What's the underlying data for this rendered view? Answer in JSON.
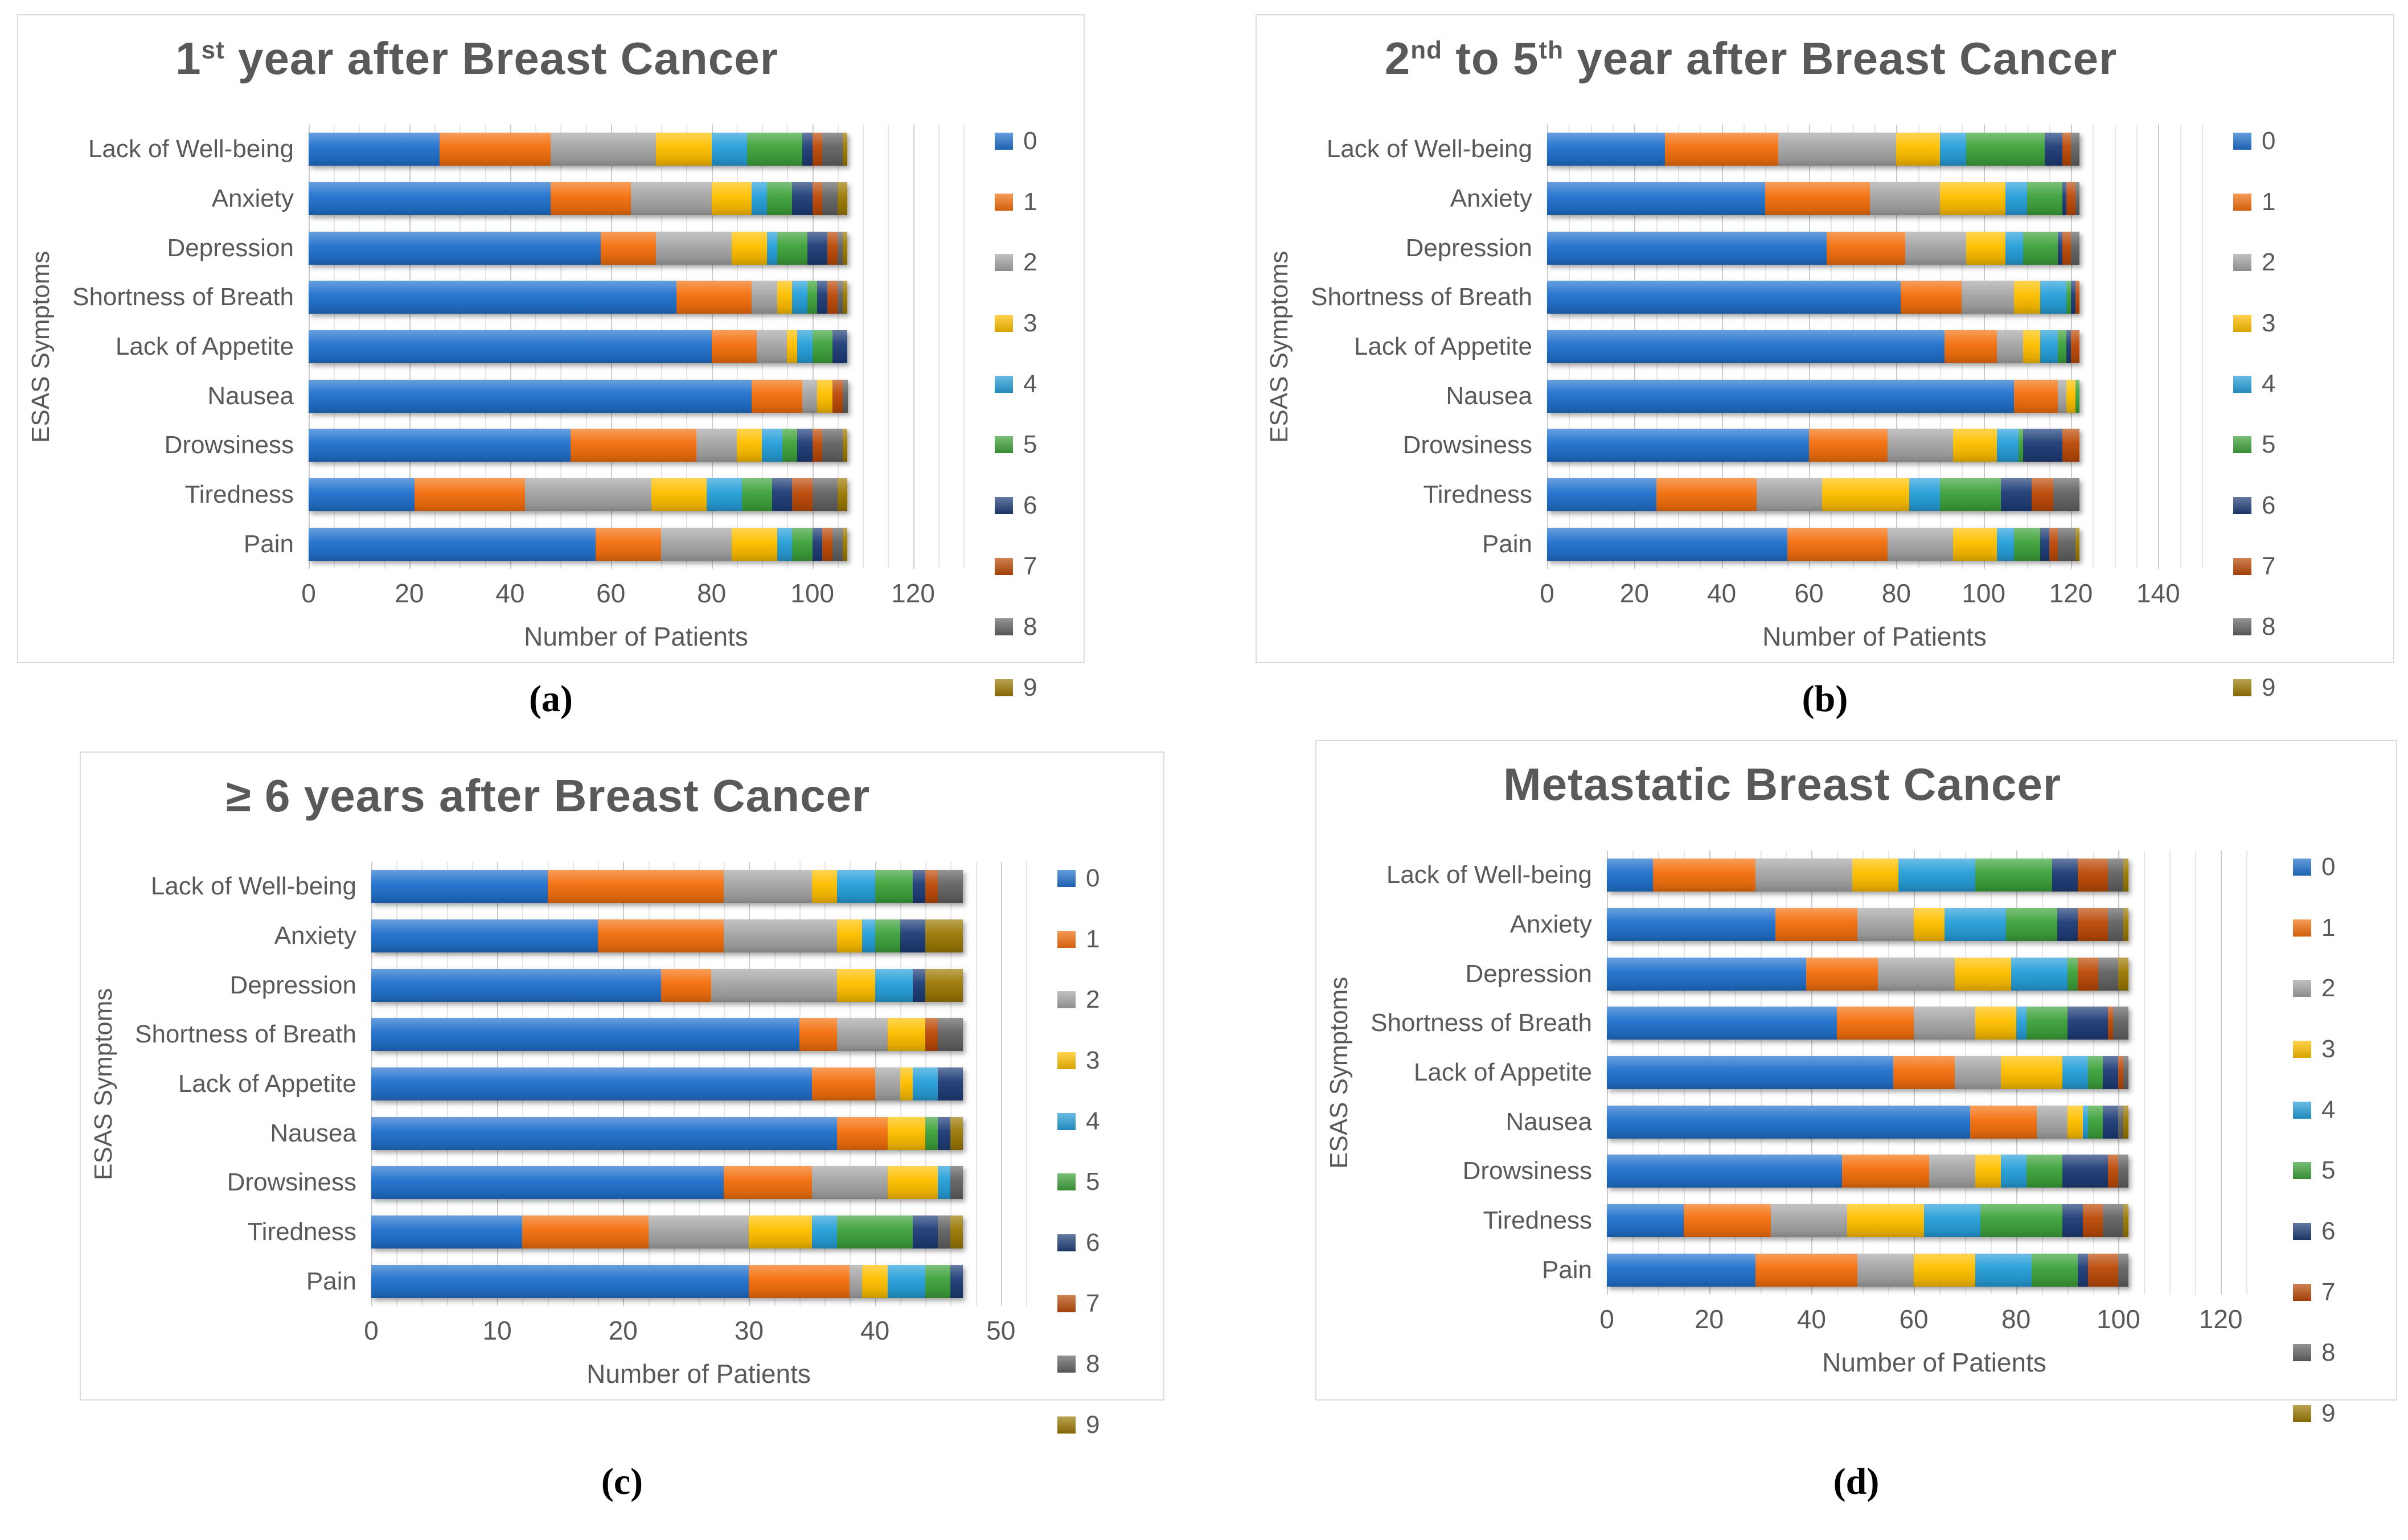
{
  "figure_labels": {
    "a": "(a)",
    "b": "(b)",
    "c": "(c)",
    "d": "(d)"
  },
  "legend": [
    {
      "label": "0",
      "color": "#2272CE"
    },
    {
      "label": "1",
      "color": "#F4700E"
    },
    {
      "label": "2",
      "color": "#A6A6A6"
    },
    {
      "label": "3",
      "color": "#FFC000"
    },
    {
      "label": "4",
      "color": "#27A0DA"
    },
    {
      "label": "5",
      "color": "#3FA33C"
    },
    {
      "label": "6",
      "color": "#1F3E78"
    },
    {
      "label": "7",
      "color": "#BC4B09"
    },
    {
      "label": "8",
      "color": "#646464"
    },
    {
      "label": "9",
      "color": "#9C7A06"
    }
  ],
  "chart_data": [
    {
      "id": "a",
      "type": "bar",
      "stacked": true,
      "orientation": "horizontal",
      "title": "1st year after Breast Cancer",
      "title_parts": [
        {
          "text": "1"
        },
        {
          "text": "st",
          "sup": true
        },
        {
          "text": " year after Breast Cancer"
        }
      ],
      "xlabel": "Number of Patients",
      "ylabel": "ESAS Symptoms",
      "categories": [
        "Lack of Well-being",
        "Anxiety",
        "Depression",
        "Shortness of Breath",
        "Lack of Appetite",
        "Nausea",
        "Drowsiness",
        "Tiredness",
        "Pain"
      ],
      "ticks": [
        0,
        20,
        40,
        60,
        80,
        100,
        120
      ],
      "axis_max": 130,
      "minor_grid": 5,
      "major_grid": 20,
      "total_per_row": 107,
      "series": [
        {
          "score": "0",
          "values": [
            26,
            48,
            58,
            73,
            80,
            88,
            52,
            21,
            57
          ]
        },
        {
          "score": "1",
          "values": [
            22,
            16,
            11,
            15,
            9,
            10,
            25,
            22,
            13
          ]
        },
        {
          "score": "2",
          "values": [
            21,
            16,
            15,
            5,
            6,
            3,
            8,
            25,
            14
          ]
        },
        {
          "score": "3",
          "values": [
            11,
            8,
            7,
            3,
            2,
            3,
            5,
            11,
            9
          ]
        },
        {
          "score": "4",
          "values": [
            7,
            3,
            2,
            3,
            3,
            0,
            4,
            7,
            3
          ]
        },
        {
          "score": "5",
          "values": [
            11,
            5,
            6,
            2,
            4,
            0,
            3,
            6,
            4
          ]
        },
        {
          "score": "6",
          "values": [
            2,
            4,
            4,
            2,
            3,
            0,
            3,
            4,
            2
          ]
        },
        {
          "score": "7",
          "values": [
            2,
            2,
            2,
            2,
            0,
            2,
            2,
            4,
            2
          ]
        },
        {
          "score": "8",
          "values": [
            4,
            3,
            1,
            1,
            0,
            1,
            4,
            5,
            2
          ]
        },
        {
          "score": "9",
          "values": [
            1,
            2,
            1,
            1,
            0,
            0,
            1,
            2,
            1
          ]
        }
      ]
    },
    {
      "id": "b",
      "type": "bar",
      "stacked": true,
      "orientation": "horizontal",
      "title": "2nd to 5th year after Breast Cancer",
      "title_parts": [
        {
          "text": "2"
        },
        {
          "text": "nd",
          "sup": true
        },
        {
          "text": " to 5"
        },
        {
          "text": "th",
          "sup": true
        },
        {
          "text": " year after Breast Cancer"
        }
      ],
      "xlabel": "Number of Patients",
      "ylabel": "ESAS Symptoms",
      "categories": [
        "Lack of Well-being",
        "Anxiety",
        "Depression",
        "Shortness of Breath",
        "Lack of Appetite",
        "Nausea",
        "Drowsiness",
        "Tiredness",
        "Pain"
      ],
      "ticks": [
        0,
        20,
        40,
        60,
        80,
        100,
        120,
        140
      ],
      "axis_max": 150,
      "minor_grid": 5,
      "major_grid": 20,
      "total_per_row": 122,
      "series": [
        {
          "score": "0",
          "values": [
            27,
            50,
            64,
            81,
            91,
            107,
            60,
            25,
            55
          ]
        },
        {
          "score": "1",
          "values": [
            26,
            24,
            18,
            14,
            12,
            10,
            18,
            23,
            23
          ]
        },
        {
          "score": "2",
          "values": [
            27,
            16,
            14,
            12,
            6,
            2,
            15,
            15,
            15
          ]
        },
        {
          "score": "3",
          "values": [
            10,
            15,
            9,
            6,
            4,
            2,
            10,
            20,
            10
          ]
        },
        {
          "score": "4",
          "values": [
            6,
            5,
            4,
            6,
            4,
            0,
            5,
            7,
            4
          ]
        },
        {
          "score": "5",
          "values": [
            18,
            8,
            8,
            1,
            2,
            1,
            1,
            14,
            6
          ]
        },
        {
          "score": "6",
          "values": [
            4,
            1,
            1,
            1,
            1,
            0,
            9,
            7,
            2
          ]
        },
        {
          "score": "7",
          "values": [
            2,
            2,
            2,
            1,
            2,
            0,
            4,
            5,
            2
          ]
        },
        {
          "score": "8",
          "values": [
            2,
            1,
            2,
            0,
            0,
            0,
            0,
            6,
            4
          ]
        },
        {
          "score": "9",
          "values": [
            0,
            0,
            0,
            0,
            0,
            0,
            0,
            0,
            1
          ]
        }
      ]
    },
    {
      "id": "c",
      "type": "bar",
      "stacked": true,
      "orientation": "horizontal",
      "title": "≥ 6 years after Breast Cancer",
      "title_parts": [
        {
          "text": "≥ 6 years after Breast Cancer"
        }
      ],
      "xlabel": "Number of Patients",
      "ylabel": "ESAS Symptoms",
      "categories": [
        "Lack of Well-being",
        "Anxiety",
        "Depression",
        "Shortness of Breath",
        "Lack of Appetite",
        "Nausea",
        "Drowsiness",
        "Tiredness",
        "Pain"
      ],
      "ticks": [
        0,
        10,
        20,
        30,
        40,
        50
      ],
      "axis_max": 52,
      "minor_grid": 2,
      "major_grid": 10,
      "total_per_row": 47,
      "series": [
        {
          "score": "0",
          "values": [
            14,
            18,
            23,
            34,
            35,
            37,
            28,
            12,
            30
          ]
        },
        {
          "score": "1",
          "values": [
            14,
            10,
            4,
            3,
            5,
            4,
            7,
            10,
            8
          ]
        },
        {
          "score": "2",
          "values": [
            7,
            9,
            10,
            4,
            2,
            0,
            6,
            8,
            1
          ]
        },
        {
          "score": "3",
          "values": [
            2,
            2,
            3,
            3,
            1,
            3,
            4,
            5,
            2
          ]
        },
        {
          "score": "4",
          "values": [
            3,
            1,
            3,
            0,
            2,
            0,
            1,
            2,
            3
          ]
        },
        {
          "score": "5",
          "values": [
            3,
            2,
            0,
            0,
            0,
            1,
            0,
            6,
            2
          ]
        },
        {
          "score": "6",
          "values": [
            1,
            2,
            1,
            0,
            2,
            1,
            0,
            2,
            1
          ]
        },
        {
          "score": "7",
          "values": [
            1,
            0,
            0,
            1,
            0,
            0,
            0,
            0,
            0
          ]
        },
        {
          "score": "8",
          "values": [
            2,
            0,
            0,
            2,
            0,
            0,
            1,
            1,
            0
          ]
        },
        {
          "score": "9",
          "values": [
            0,
            3,
            3,
            0,
            0,
            1,
            0,
            1,
            0
          ]
        }
      ]
    },
    {
      "id": "d",
      "type": "bar",
      "stacked": true,
      "orientation": "horizontal",
      "title": "Metastatic Breast Cancer",
      "title_parts": [
        {
          "text": "Metastatic Breast Cancer"
        }
      ],
      "xlabel": "Number of Patients",
      "ylabel": "ESAS Symptoms",
      "categories": [
        "Lack of Well-being",
        "Anxiety",
        "Depression",
        "Shortness of Breath",
        "Lack of Appetite",
        "Nausea",
        "Drowsiness",
        "Tiredness",
        "Pain"
      ],
      "ticks": [
        0,
        20,
        40,
        60,
        80,
        100,
        120
      ],
      "axis_max": 128,
      "minor_grid": 5,
      "major_grid": 20,
      "total_per_row": 102,
      "series": [
        {
          "score": "0",
          "values": [
            9,
            33,
            39,
            45,
            56,
            71,
            46,
            15,
            29
          ]
        },
        {
          "score": "1",
          "values": [
            20,
            16,
            14,
            15,
            12,
            13,
            17,
            17,
            20
          ]
        },
        {
          "score": "2",
          "values": [
            19,
            11,
            15,
            12,
            9,
            6,
            9,
            15,
            11
          ]
        },
        {
          "score": "3",
          "values": [
            9,
            6,
            11,
            8,
            12,
            3,
            5,
            15,
            12
          ]
        },
        {
          "score": "4",
          "values": [
            15,
            12,
            11,
            2,
            5,
            1,
            5,
            11,
            11
          ]
        },
        {
          "score": "5",
          "values": [
            15,
            10,
            2,
            8,
            3,
            3,
            7,
            16,
            9
          ]
        },
        {
          "score": "6",
          "values": [
            5,
            4,
            0,
            8,
            3,
            3,
            9,
            4,
            2
          ]
        },
        {
          "score": "7",
          "values": [
            6,
            6,
            4,
            1,
            1,
            0,
            2,
            4,
            6
          ]
        },
        {
          "score": "8",
          "values": [
            3,
            3,
            4,
            3,
            1,
            1,
            2,
            4,
            2
          ]
        },
        {
          "score": "9",
          "values": [
            1,
            1,
            2,
            0,
            0,
            1,
            0,
            1,
            0
          ]
        }
      ]
    }
  ]
}
